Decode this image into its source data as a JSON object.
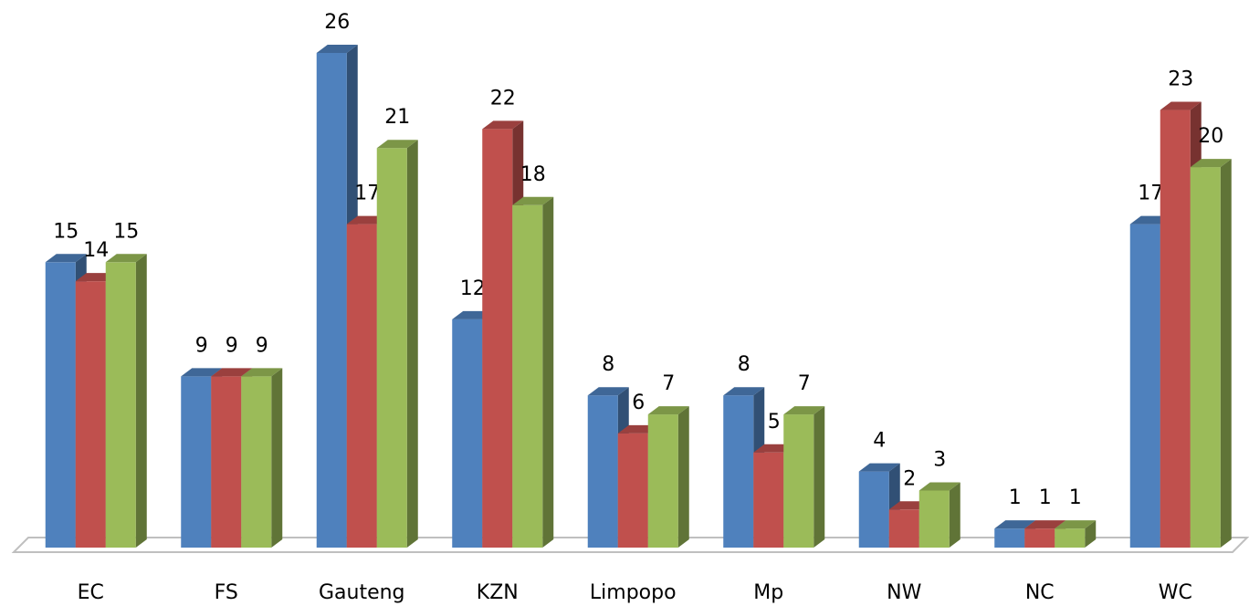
{
  "chart_data": {
    "type": "bar3d",
    "categories": [
      "EC",
      "FS",
      "Gauteng",
      "KZN",
      "Limpopo",
      "Mp",
      "NW",
      "NC",
      "WC"
    ],
    "series": [
      {
        "color": "#4f81bd",
        "values": [
          15,
          9,
          26,
          12,
          8,
          8,
          4,
          1,
          17
        ]
      },
      {
        "color": "#c0504d",
        "values": [
          14,
          9,
          17,
          22,
          6,
          5,
          2,
          1,
          23
        ]
      },
      {
        "color": "#9bbb59",
        "values": [
          15,
          9,
          21,
          18,
          7,
          7,
          3,
          1,
          20
        ]
      }
    ],
    "ylim": [
      0,
      26
    ]
  }
}
